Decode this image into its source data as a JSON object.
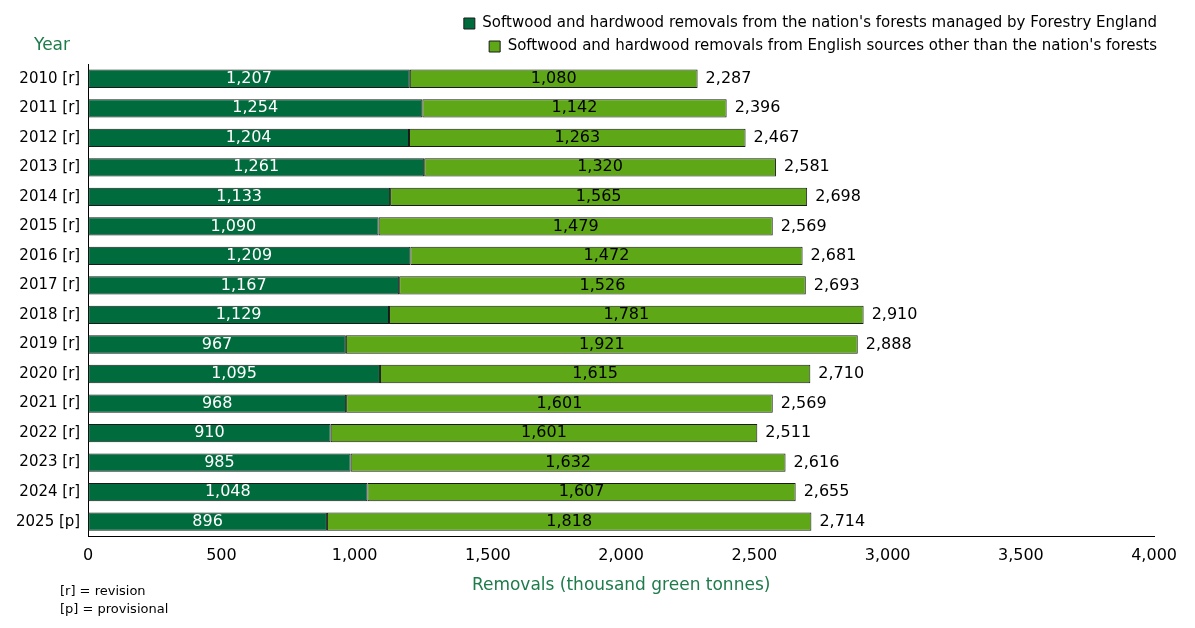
{
  "chart_data": {
    "type": "bar",
    "orientation": "horizontal",
    "stacked": true,
    "ylabel": "Year",
    "xlabel": "Removals (thousand green tonnes)",
    "categories": [
      "2010 [r]",
      "2011 [r]",
      "2012 [r]",
      "2013 [r]",
      "2014 [r]",
      "2015 [r]",
      "2016 [r]",
      "2017 [r]",
      "2018 [r]",
      "2019 [r]",
      "2020 [r]",
      "2021 [r]",
      "2022 [r]",
      "2023 [r]",
      "2024 [r]",
      "2025 [p]"
    ],
    "series": [
      {
        "name": "Softwood and hardwood removals from the nation's forests managed by Forestry England",
        "color": "#006b3c",
        "values": [
          1207,
          1254,
          1204,
          1261,
          1133,
          1090,
          1209,
          1167,
          1129,
          967,
          1095,
          968,
          910,
          985,
          1048,
          896
        ],
        "value_labels": [
          "1,207",
          "1,254",
          "1,204",
          "1,261",
          "1,133",
          "1,090",
          "1,209",
          "1,167",
          "1,129",
          "967",
          "1,095",
          "968",
          "910",
          "985",
          "1,048",
          "896"
        ]
      },
      {
        "name": "Softwood and hardwood removals from English sources other than the nation's forests",
        "color": "#5ea717",
        "values": [
          1080,
          1142,
          1263,
          1320,
          1565,
          1479,
          1472,
          1526,
          1781,
          1921,
          1615,
          1601,
          1601,
          1632,
          1607,
          1818
        ],
        "value_labels": [
          "1,080",
          "1,142",
          "1,263",
          "1,320",
          "1,565",
          "1,479",
          "1,472",
          "1,526",
          "1,781",
          "1,921",
          "1,615",
          "1,601",
          "1,601",
          "1,632",
          "1,607",
          "1,818"
        ]
      }
    ],
    "totals": [
      "2,287",
      "2,396",
      "2,467",
      "2,581",
      "2,698",
      "2,569",
      "2,681",
      "2,693",
      "2,910",
      "2,888",
      "2,710",
      "2,569",
      "2,511",
      "2,616",
      "2,655",
      "2,714"
    ],
    "xlim": [
      0,
      4000
    ],
    "xticks": [
      0,
      500,
      {
        "value": 1000,
        "label": "1,000"
      },
      {
        "value": 1500,
        "label": "1,500"
      },
      {
        "value": 2000,
        "label": "2,000"
      },
      {
        "value": 2500,
        "label": "2,500"
      },
      {
        "value": 3000,
        "label": "3,000"
      },
      {
        "value": 3500,
        "label": "3,500"
      },
      {
        "value": 4000,
        "label": "4,000"
      }
    ],
    "grid": false,
    "legend": "top right",
    "annotations": [
      "[r] = revision",
      "[p] = provisional"
    ]
  }
}
